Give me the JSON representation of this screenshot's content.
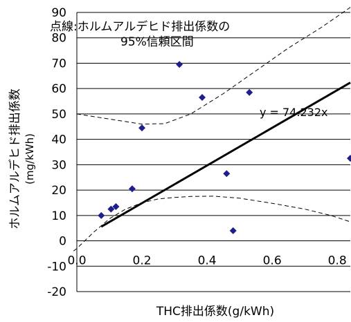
{
  "chart_data": {
    "type": "scatter",
    "title": "",
    "xlabel": "THC排出係数(g/kWh)",
    "ylabel": "ホルムアルデヒド排出係数",
    "ylabel_unit": "(mg/kWh)",
    "xlim": [
      0,
      0.84
    ],
    "ylim": [
      -20,
      90
    ],
    "x_ticks": [
      0,
      0.2,
      0.4,
      0.6,
      0.8
    ],
    "x_tick_labels": [
      "0.0",
      "0.2",
      "0.4",
      "0.6",
      "0.8"
    ],
    "y_ticks": [
      -20,
      -10,
      0,
      10,
      20,
      30,
      40,
      50,
      60,
      70,
      80,
      90
    ],
    "y_tick_labels": [
      "-20",
      "-10",
      "0",
      "10",
      "20",
      "30",
      "40",
      "50",
      "60",
      "70",
      "80",
      "90"
    ],
    "grid": "horizontal",
    "marker_color": "#1f1f8c",
    "points": [
      {
        "x": 0.075,
        "y": 10
      },
      {
        "x": 0.105,
        "y": 12.5
      },
      {
        "x": 0.12,
        "y": 13.5
      },
      {
        "x": 0.17,
        "y": 20.5
      },
      {
        "x": 0.2,
        "y": 44.5
      },
      {
        "x": 0.315,
        "y": 69.5
      },
      {
        "x": 0.385,
        "y": 56.5
      },
      {
        "x": 0.46,
        "y": 26.5
      },
      {
        "x": 0.48,
        "y": 4
      },
      {
        "x": 0.53,
        "y": 58.5
      },
      {
        "x": 0.84,
        "y": 32.5
      }
    ],
    "trendline": {
      "slope": 74.232,
      "x_range": [
        0.075,
        0.84
      ],
      "label": "y = 74.232x"
    },
    "confidence_band": {
      "label": "点線:ホルムアルデヒド排出係数の\n95%信頼区間",
      "upper": [
        [
          0,
          50
        ],
        [
          0.1,
          48
        ],
        [
          0.2,
          46
        ],
        [
          0.27,
          46.2
        ],
        [
          0.35,
          50
        ],
        [
          0.45,
          58
        ],
        [
          0.55,
          67
        ],
        [
          0.65,
          76
        ],
        [
          0.75,
          84
        ],
        [
          0.84,
          92
        ]
      ],
      "lower": [
        [
          -0.01,
          -4
        ],
        [
          0,
          -3
        ],
        [
          0.05,
          3.2
        ],
        [
          0.1,
          8.7
        ],
        [
          0.15,
          12.5
        ],
        [
          0.2,
          15
        ],
        [
          0.25,
          16.5
        ],
        [
          0.3,
          17.1
        ],
        [
          0.35,
          17.5
        ],
        [
          0.42,
          17.6
        ],
        [
          0.5,
          16.8
        ],
        [
          0.6,
          14.8
        ],
        [
          0.7,
          12.5
        ],
        [
          0.78,
          10
        ],
        [
          0.84,
          7.5
        ]
      ]
    }
  }
}
